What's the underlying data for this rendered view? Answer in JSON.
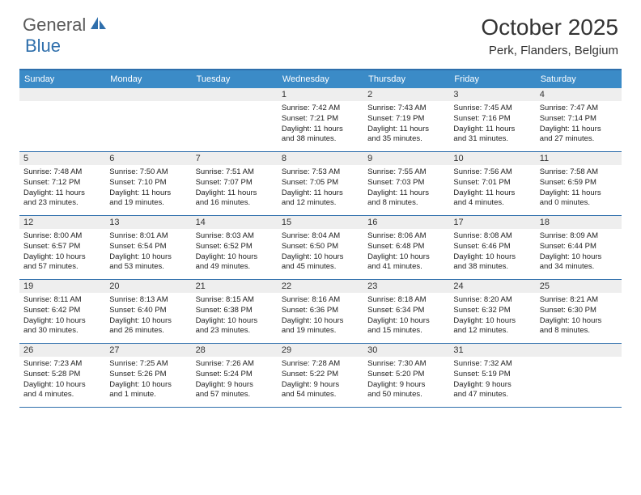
{
  "logo": {
    "text1": "General",
    "text2": "Blue"
  },
  "title": "October 2025",
  "subtitle": "Perk, Flanders, Belgium",
  "colors": {
    "header_bg": "#3b8bc7",
    "border": "#2f6fac",
    "day_num_bg": "#eeeeee",
    "logo_gray": "#5a5a5a",
    "logo_blue": "#2f6fac",
    "page_bg": "#ffffff",
    "text": "#333333"
  },
  "day_headers": [
    "Sunday",
    "Monday",
    "Tuesday",
    "Wednesday",
    "Thursday",
    "Friday",
    "Saturday"
  ],
  "weeks": [
    [
      {
        "n": "",
        "lines": []
      },
      {
        "n": "",
        "lines": []
      },
      {
        "n": "",
        "lines": []
      },
      {
        "n": "1",
        "lines": [
          "Sunrise: 7:42 AM",
          "Sunset: 7:21 PM",
          "Daylight: 11 hours",
          "and 38 minutes."
        ]
      },
      {
        "n": "2",
        "lines": [
          "Sunrise: 7:43 AM",
          "Sunset: 7:19 PM",
          "Daylight: 11 hours",
          "and 35 minutes."
        ]
      },
      {
        "n": "3",
        "lines": [
          "Sunrise: 7:45 AM",
          "Sunset: 7:16 PM",
          "Daylight: 11 hours",
          "and 31 minutes."
        ]
      },
      {
        "n": "4",
        "lines": [
          "Sunrise: 7:47 AM",
          "Sunset: 7:14 PM",
          "Daylight: 11 hours",
          "and 27 minutes."
        ]
      }
    ],
    [
      {
        "n": "5",
        "lines": [
          "Sunrise: 7:48 AM",
          "Sunset: 7:12 PM",
          "Daylight: 11 hours",
          "and 23 minutes."
        ]
      },
      {
        "n": "6",
        "lines": [
          "Sunrise: 7:50 AM",
          "Sunset: 7:10 PM",
          "Daylight: 11 hours",
          "and 19 minutes."
        ]
      },
      {
        "n": "7",
        "lines": [
          "Sunrise: 7:51 AM",
          "Sunset: 7:07 PM",
          "Daylight: 11 hours",
          "and 16 minutes."
        ]
      },
      {
        "n": "8",
        "lines": [
          "Sunrise: 7:53 AM",
          "Sunset: 7:05 PM",
          "Daylight: 11 hours",
          "and 12 minutes."
        ]
      },
      {
        "n": "9",
        "lines": [
          "Sunrise: 7:55 AM",
          "Sunset: 7:03 PM",
          "Daylight: 11 hours",
          "and 8 minutes."
        ]
      },
      {
        "n": "10",
        "lines": [
          "Sunrise: 7:56 AM",
          "Sunset: 7:01 PM",
          "Daylight: 11 hours",
          "and 4 minutes."
        ]
      },
      {
        "n": "11",
        "lines": [
          "Sunrise: 7:58 AM",
          "Sunset: 6:59 PM",
          "Daylight: 11 hours",
          "and 0 minutes."
        ]
      }
    ],
    [
      {
        "n": "12",
        "lines": [
          "Sunrise: 8:00 AM",
          "Sunset: 6:57 PM",
          "Daylight: 10 hours",
          "and 57 minutes."
        ]
      },
      {
        "n": "13",
        "lines": [
          "Sunrise: 8:01 AM",
          "Sunset: 6:54 PM",
          "Daylight: 10 hours",
          "and 53 minutes."
        ]
      },
      {
        "n": "14",
        "lines": [
          "Sunrise: 8:03 AM",
          "Sunset: 6:52 PM",
          "Daylight: 10 hours",
          "and 49 minutes."
        ]
      },
      {
        "n": "15",
        "lines": [
          "Sunrise: 8:04 AM",
          "Sunset: 6:50 PM",
          "Daylight: 10 hours",
          "and 45 minutes."
        ]
      },
      {
        "n": "16",
        "lines": [
          "Sunrise: 8:06 AM",
          "Sunset: 6:48 PM",
          "Daylight: 10 hours",
          "and 41 minutes."
        ]
      },
      {
        "n": "17",
        "lines": [
          "Sunrise: 8:08 AM",
          "Sunset: 6:46 PM",
          "Daylight: 10 hours",
          "and 38 minutes."
        ]
      },
      {
        "n": "18",
        "lines": [
          "Sunrise: 8:09 AM",
          "Sunset: 6:44 PM",
          "Daylight: 10 hours",
          "and 34 minutes."
        ]
      }
    ],
    [
      {
        "n": "19",
        "lines": [
          "Sunrise: 8:11 AM",
          "Sunset: 6:42 PM",
          "Daylight: 10 hours",
          "and 30 minutes."
        ]
      },
      {
        "n": "20",
        "lines": [
          "Sunrise: 8:13 AM",
          "Sunset: 6:40 PM",
          "Daylight: 10 hours",
          "and 26 minutes."
        ]
      },
      {
        "n": "21",
        "lines": [
          "Sunrise: 8:15 AM",
          "Sunset: 6:38 PM",
          "Daylight: 10 hours",
          "and 23 minutes."
        ]
      },
      {
        "n": "22",
        "lines": [
          "Sunrise: 8:16 AM",
          "Sunset: 6:36 PM",
          "Daylight: 10 hours",
          "and 19 minutes."
        ]
      },
      {
        "n": "23",
        "lines": [
          "Sunrise: 8:18 AM",
          "Sunset: 6:34 PM",
          "Daylight: 10 hours",
          "and 15 minutes."
        ]
      },
      {
        "n": "24",
        "lines": [
          "Sunrise: 8:20 AM",
          "Sunset: 6:32 PM",
          "Daylight: 10 hours",
          "and 12 minutes."
        ]
      },
      {
        "n": "25",
        "lines": [
          "Sunrise: 8:21 AM",
          "Sunset: 6:30 PM",
          "Daylight: 10 hours",
          "and 8 minutes."
        ]
      }
    ],
    [
      {
        "n": "26",
        "lines": [
          "Sunrise: 7:23 AM",
          "Sunset: 5:28 PM",
          "Daylight: 10 hours",
          "and 4 minutes."
        ]
      },
      {
        "n": "27",
        "lines": [
          "Sunrise: 7:25 AM",
          "Sunset: 5:26 PM",
          "Daylight: 10 hours",
          "and 1 minute."
        ]
      },
      {
        "n": "28",
        "lines": [
          "Sunrise: 7:26 AM",
          "Sunset: 5:24 PM",
          "Daylight: 9 hours",
          "and 57 minutes."
        ]
      },
      {
        "n": "29",
        "lines": [
          "Sunrise: 7:28 AM",
          "Sunset: 5:22 PM",
          "Daylight: 9 hours",
          "and 54 minutes."
        ]
      },
      {
        "n": "30",
        "lines": [
          "Sunrise: 7:30 AM",
          "Sunset: 5:20 PM",
          "Daylight: 9 hours",
          "and 50 minutes."
        ]
      },
      {
        "n": "31",
        "lines": [
          "Sunrise: 7:32 AM",
          "Sunset: 5:19 PM",
          "Daylight: 9 hours",
          "and 47 minutes."
        ]
      },
      {
        "n": "",
        "lines": []
      }
    ]
  ]
}
